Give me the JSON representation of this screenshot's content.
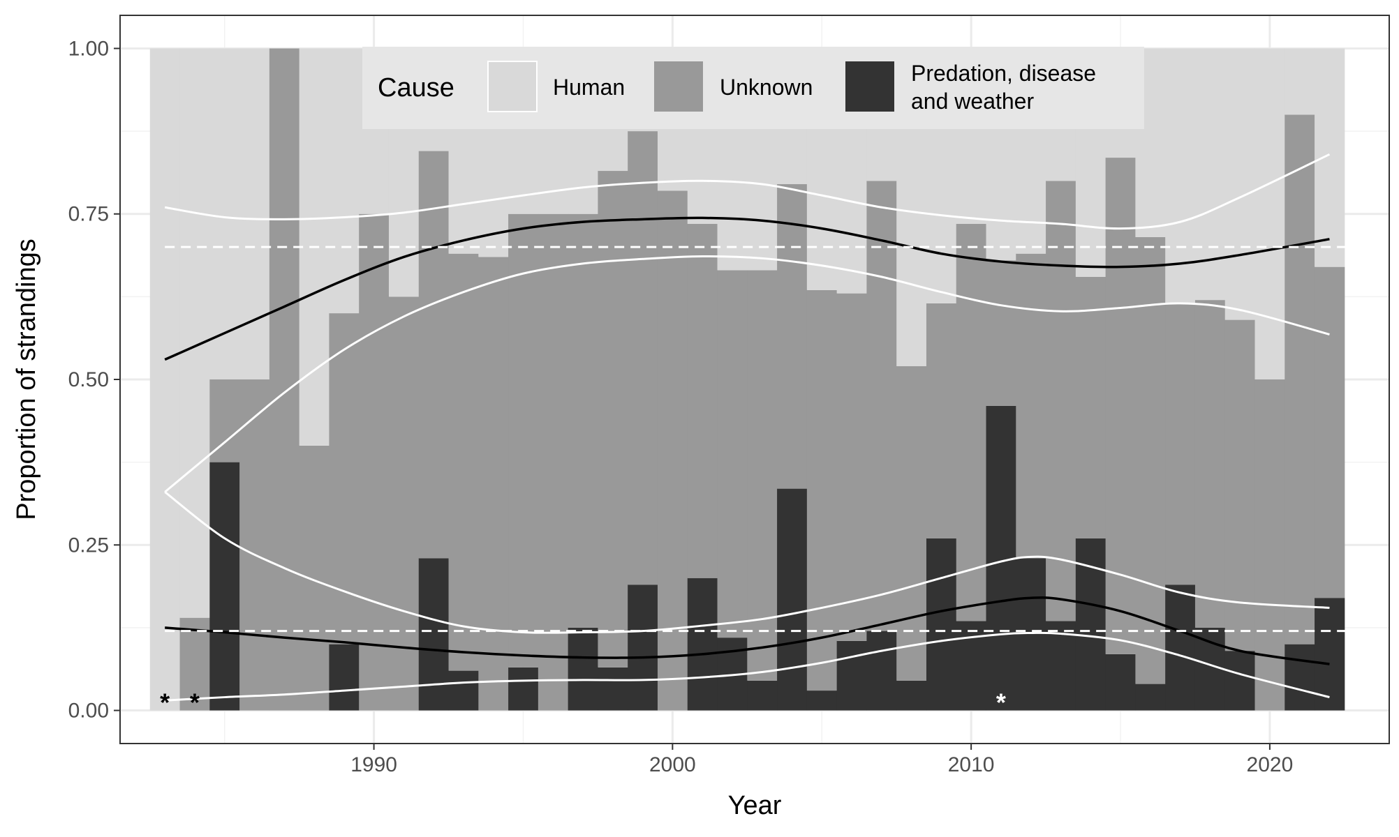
{
  "chart_data": {
    "type": "bar",
    "xlabel": "Year",
    "ylabel": "Proportion of strandings",
    "xlim": [
      1981.5,
      2024.0
    ],
    "ylim": [
      -0.05,
      1.05
    ],
    "x_ticks": [
      1990,
      2000,
      2010,
      2020
    ],
    "x_tick_labels": [
      "1990",
      "2000",
      "2010",
      "2020"
    ],
    "y_ticks": [
      0,
      0.25,
      0.5,
      0.75,
      1.0
    ],
    "y_tick_labels": [
      "0.00",
      "0.25",
      "0.50",
      "0.75",
      "1.00"
    ],
    "grid": true,
    "legend": {
      "title": "Cause",
      "position": "top-inside",
      "entries": [
        {
          "label": "Human",
          "color": "#d9d9d9"
        },
        {
          "label": "Unknown",
          "color": "#999999"
        },
        {
          "label_lines": [
            "Predation, disease",
            "and weather"
          ],
          "color": "#333333"
        }
      ]
    },
    "years": [
      1983,
      1984,
      1985,
      1986,
      1987,
      1988,
      1989,
      1990,
      1991,
      1992,
      1993,
      1994,
      1995,
      1996,
      1997,
      1998,
      1999,
      2000,
      2001,
      2002,
      2003,
      2004,
      2005,
      2006,
      2007,
      2008,
      2009,
      2010,
      2011,
      2012,
      2013,
      2014,
      2015,
      2016,
      2017,
      2018,
      2019,
      2020,
      2021,
      2022
    ],
    "series": [
      {
        "name": "Predation, disease and weather",
        "values": [
          0,
          0,
          0.375,
          0,
          0,
          0,
          0.1,
          0,
          0,
          0.23,
          0.06,
          0,
          0.065,
          0,
          0.125,
          0.065,
          0.19,
          0,
          0.2,
          0.11,
          0.045,
          0.335,
          0.03,
          0.105,
          0.12,
          0.045,
          0.26,
          0.135,
          0.46,
          0.23,
          0.135,
          0.26,
          0.085,
          0.04,
          0.19,
          0.125,
          0.09,
          0,
          0.1,
          0.17
        ]
      },
      {
        "name": "Unknown",
        "values": [
          0,
          0.14,
          0.125,
          0.5,
          1.0,
          0.4,
          0.5,
          0.75,
          0.625,
          0.615,
          0.63,
          0.685,
          0.685,
          0.75,
          0.625,
          0.75,
          0.685,
          0.785,
          0.535,
          0.555,
          0.62,
          0.46,
          0.605,
          0.525,
          0.68,
          0.475,
          0.355,
          0.6,
          0.22,
          0.46,
          0.665,
          0.395,
          0.75,
          0.675,
          0.425,
          0.495,
          0.5,
          0.5,
          0.8,
          0.5
        ]
      },
      {
        "name": "Human",
        "values": [
          1.0,
          0.86,
          0.5,
          0.5,
          0,
          0.6,
          0.4,
          0.25,
          0.375,
          0.155,
          0.31,
          0.315,
          0.25,
          0.25,
          0.25,
          0.185,
          0.125,
          0.215,
          0.265,
          0.335,
          0.335,
          0.205,
          0.365,
          0.37,
          0.2,
          0.48,
          0.385,
          0.265,
          0.32,
          0.31,
          0.2,
          0.345,
          0.165,
          0.285,
          0.385,
          0.38,
          0.41,
          0.5,
          0.1,
          0.33
        ]
      }
    ],
    "mean_lines": [
      {
        "y": 0.7,
        "style": "dashed",
        "color": "#ffffff"
      },
      {
        "y": 0.12,
        "style": "dashed",
        "color": "#ffffff"
      }
    ],
    "trend_fits": [
      {
        "x": [
          1983,
          1985,
          1987,
          1989,
          1991,
          1993,
          1995,
          1997,
          1999,
          2001,
          2003,
          2005,
          2007,
          2009,
          2011,
          2013,
          2015,
          2017,
          2019,
          2022
        ],
        "fit": [
          0.53,
          0.57,
          0.61,
          0.65,
          0.685,
          0.71,
          0.728,
          0.738,
          0.742,
          0.744,
          0.74,
          0.728,
          0.71,
          0.69,
          0.678,
          0.672,
          0.67,
          0.675,
          0.688,
          0.712
        ],
        "upper": [
          0.76,
          0.745,
          0.742,
          0.745,
          0.752,
          0.765,
          0.778,
          0.79,
          0.797,
          0.8,
          0.795,
          0.778,
          0.76,
          0.748,
          0.74,
          0.735,
          0.728,
          0.738,
          0.775,
          0.84
        ],
        "lower": [
          0.33,
          0.405,
          0.48,
          0.545,
          0.595,
          0.632,
          0.66,
          0.675,
          0.682,
          0.686,
          0.683,
          0.672,
          0.655,
          0.632,
          0.612,
          0.603,
          0.608,
          0.615,
          0.605,
          0.568
        ]
      },
      {
        "x": [
          1983,
          1985,
          1987,
          1989,
          1991,
          1993,
          1995,
          1997,
          1999,
          2001,
          2003,
          2005,
          2007,
          2009,
          2011,
          2012,
          2013,
          2015,
          2017,
          2019,
          2022
        ],
        "fit": [
          0.125,
          0.118,
          0.11,
          0.103,
          0.095,
          0.088,
          0.083,
          0.08,
          0.08,
          0.085,
          0.095,
          0.11,
          0.13,
          0.15,
          0.165,
          0.17,
          0.168,
          0.15,
          0.12,
          0.09,
          0.07
        ],
        "upper": [
          0.33,
          0.26,
          0.215,
          0.18,
          0.15,
          0.127,
          0.118,
          0.118,
          0.12,
          0.128,
          0.138,
          0.155,
          0.175,
          0.2,
          0.225,
          0.232,
          0.228,
          0.205,
          0.178,
          0.163,
          0.155
        ],
        "lower": [
          0.015,
          0.02,
          0.024,
          0.03,
          0.036,
          0.042,
          0.045,
          0.046,
          0.046,
          0.05,
          0.058,
          0.072,
          0.09,
          0.105,
          0.115,
          0.117,
          0.116,
          0.106,
          0.083,
          0.055,
          0.02
        ]
      }
    ],
    "annotations": [
      {
        "text": "*",
        "x": 1983,
        "y": 0.02,
        "color": "#000000"
      },
      {
        "text": "*",
        "x": 1984,
        "y": 0.02,
        "color": "#000000"
      },
      {
        "text": "*",
        "x": 2011,
        "y": 0.02,
        "color": "#ffffff"
      }
    ]
  }
}
